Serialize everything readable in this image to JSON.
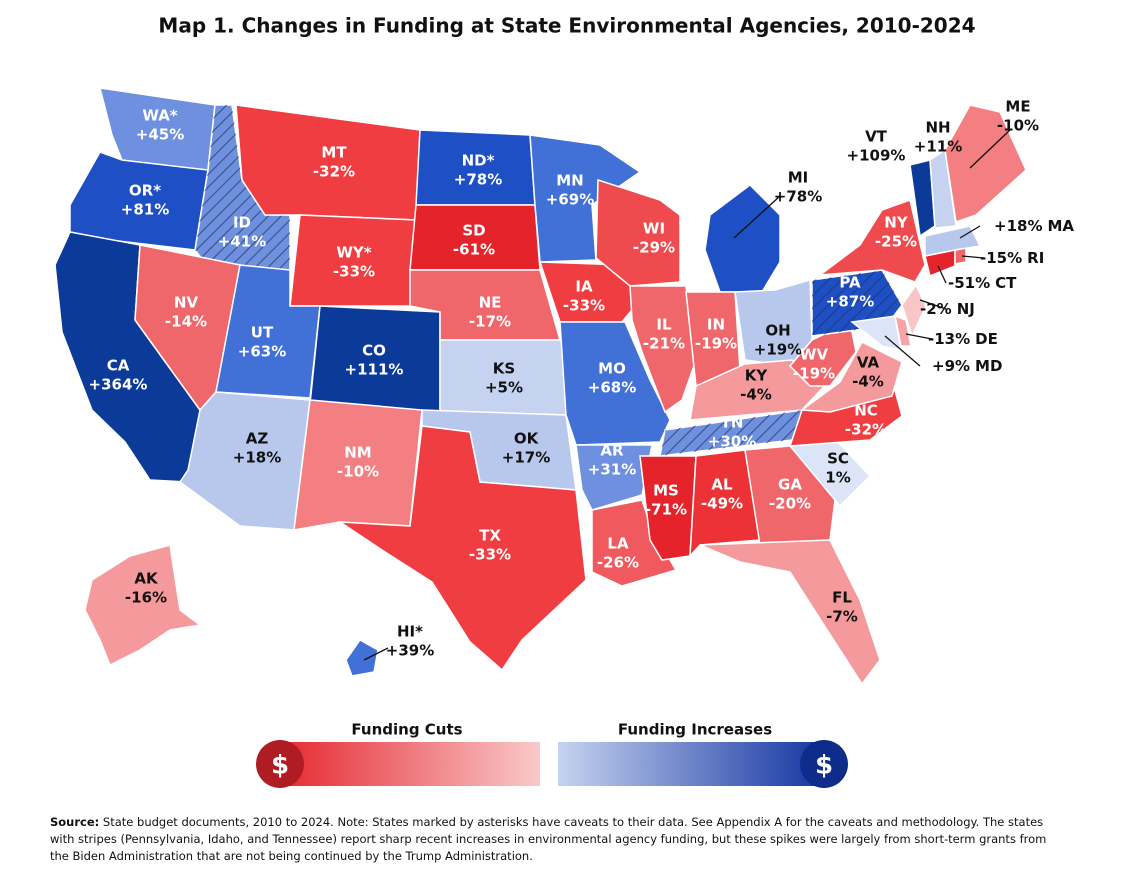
{
  "title": "Map 1. Changes in Funding at State Environmental Agencies, 2010-2024",
  "states": [
    {
      "name": "WA*",
      "change": "+45%",
      "color": "#6e90de"
    },
    {
      "name": "OR*",
      "change": "+81%",
      "color": "#1e4fc4"
    },
    {
      "name": "CA",
      "change": "+364%",
      "color": "#0c3a98"
    },
    {
      "name": "ID",
      "change": "+41%",
      "color": "#6e90de",
      "striped": true
    },
    {
      "name": "NV",
      "change": "-14%",
      "color": "#f0676b"
    },
    {
      "name": "MT",
      "change": "-32%",
      "color": "#ef3d42"
    },
    {
      "name": "WY*",
      "change": "-33%",
      "color": "#ef3d42"
    },
    {
      "name": "UT",
      "change": "+63%",
      "color": "#4170d6"
    },
    {
      "name": "CO",
      "change": "+111%",
      "color": "#0c3a98"
    },
    {
      "name": "AZ",
      "change": "+18%",
      "color": "#b8c8ec"
    },
    {
      "name": "NM",
      "change": "-10%",
      "color": "#f47f82"
    },
    {
      "name": "ND*",
      "change": "+78%",
      "color": "#1e4fc4"
    },
    {
      "name": "SD",
      "change": "-61%",
      "color": "#e4232b"
    },
    {
      "name": "NE",
      "change": "-17%",
      "color": "#f0676b"
    },
    {
      "name": "KS",
      "change": "+5%",
      "color": "#c6d3f0"
    },
    {
      "name": "OK",
      "change": "+17%",
      "color": "#b8c8ec"
    },
    {
      "name": "TX",
      "change": "-33%",
      "color": "#ef3d42"
    },
    {
      "name": "MN",
      "change": "+69%",
      "color": "#4170d6"
    },
    {
      "name": "IA",
      "change": "-33%",
      "color": "#ef3d42"
    },
    {
      "name": "MO",
      "change": "+68%",
      "color": "#4170d6"
    },
    {
      "name": "AR",
      "change": "+31%",
      "color": "#6e90de"
    },
    {
      "name": "LA",
      "change": "-26%",
      "color": "#f05a5e"
    },
    {
      "name": "WI",
      "change": "-29%",
      "color": "#ef4a4e"
    },
    {
      "name": "IL",
      "change": "-21%",
      "color": "#f0676b"
    },
    {
      "name": "MI",
      "change": "+78%",
      "color": "#1e4fc4"
    },
    {
      "name": "IN",
      "change": "-19%",
      "color": "#f0676b"
    },
    {
      "name": "OH",
      "change": "+19%",
      "color": "#b8c8ec"
    },
    {
      "name": "KY",
      "change": "-4%",
      "color": "#f59a9c"
    },
    {
      "name": "TN",
      "change": "+30%",
      "color": "#6e90de",
      "striped": true
    },
    {
      "name": "MS",
      "change": "-71%",
      "color": "#e4232b"
    },
    {
      "name": "AL",
      "change": "-49%",
      "color": "#ec3237"
    },
    {
      "name": "GA",
      "change": "-20%",
      "color": "#f0676b"
    },
    {
      "name": "FL",
      "change": "-7%",
      "color": "#f59a9c"
    },
    {
      "name": "SC",
      "change": "1%",
      "color": "#dce5f7"
    },
    {
      "name": "NC",
      "change": "-32%",
      "color": "#ef3d42"
    },
    {
      "name": "VA",
      "change": "-4%",
      "color": "#f59a9c"
    },
    {
      "name": "WV",
      "change": "-19%",
      "color": "#f0676b"
    },
    {
      "name": "PA",
      "change": "+87%",
      "color": "#1e4fc4",
      "striped": true
    },
    {
      "name": "NY",
      "change": "-25%",
      "color": "#ef4a4e"
    },
    {
      "name": "NJ",
      "change": "-2%",
      "color": "#f8c6c7"
    },
    {
      "name": "DE",
      "change": "-13%",
      "color": "#f5a5a7"
    },
    {
      "name": "MD",
      "change": "+9%",
      "color": "#dce5f7"
    },
    {
      "name": "CT",
      "change": "-51%",
      "color": "#e4232b"
    },
    {
      "name": "RI",
      "change": "-15%",
      "color": "#f0676b"
    },
    {
      "name": "MA",
      "change": "+18%",
      "color": "#b8c8ec"
    },
    {
      "name": "VT",
      "change": "+109%",
      "color": "#0c3a98"
    },
    {
      "name": "NH",
      "change": "+11%",
      "color": "#c6d3f0"
    },
    {
      "name": "ME",
      "change": "-10%",
      "color": "#f47f82"
    },
    {
      "name": "AK",
      "change": "-16%",
      "color": "#f59a9c"
    },
    {
      "name": "HI*",
      "change": "+39%",
      "color": "#4170d6"
    }
  ],
  "legend": {
    "cuts": "Funding Cuts",
    "increases": "Funding Increases",
    "symbol": "$"
  },
  "source": {
    "lead": "Source:",
    "text": "State budget documents, 2010 to 2024. Note: States marked by asterisks have caveats to their data. See Appendix A for the caveats and methodology. The states with stripes (Pennsylvania, Idaho, and Tennessee) report sharp recent increases in environmental agency funding, but these spikes were largely from short-term grants from the Biden Administration that are not being continued by the Trump Administration."
  }
}
